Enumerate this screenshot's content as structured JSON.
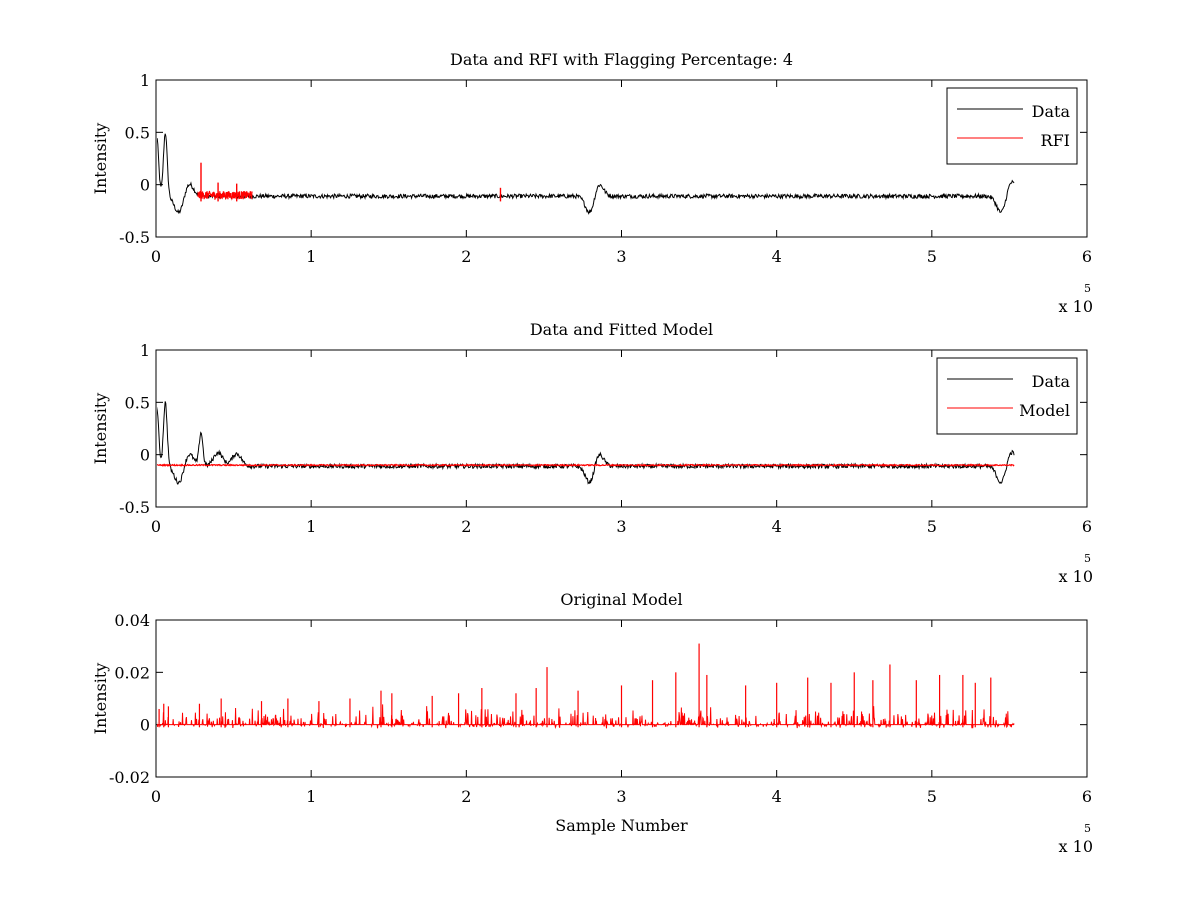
{
  "chart_data": [
    {
      "type": "line",
      "title": "Data and RFI with Flagging Percentage: 4",
      "xlabel": "",
      "ylabel": "Intensity",
      "xlim": [
        0,
        6
      ],
      "ylim": [
        -0.5,
        1
      ],
      "xticks": [
        "0",
        "1",
        "2",
        "3",
        "4",
        "5",
        "6"
      ],
      "yticks": [
        "-0.5",
        "0",
        "0.5",
        "1"
      ],
      "x_exponent": {
        "base": "x 10",
        "power": "5"
      },
      "legend": {
        "position": "top-right",
        "entries": [
          {
            "label": "Data",
            "color": "#000000"
          },
          {
            "label": "RFI",
            "color": "#ff0000"
          }
        ]
      },
      "series": [
        {
          "name": "Data",
          "color": "#000000",
          "style": "data",
          "x_end": 5.53,
          "baseline": -0.11,
          "noise": 0.02,
          "features": [
            {
              "x": 0.005,
              "y": 0.45
            },
            {
              "x": 0.06,
              "y": 0.5
            },
            {
              "x": 0.15,
              "y": -0.28
            },
            {
              "x": 0.21,
              "y": 0.02
            },
            {
              "x": 2.8,
              "y": -0.29
            },
            {
              "x": 2.85,
              "y": 0.03
            },
            {
              "x": 5.45,
              "y": -0.28
            },
            {
              "x": 5.51,
              "y": 0.04
            }
          ]
        },
        {
          "name": "RFI",
          "color": "#ff0000",
          "style": "rfi",
          "segments": [
            [
              0.27,
              0.62
            ]
          ],
          "spikes": [
            {
              "x": 0.29,
              "y": 0.21
            },
            {
              "x": 0.4,
              "y": 0.02
            },
            {
              "x": 0.52,
              "y": 0.01
            },
            {
              "x": 2.22,
              "y": -0.03
            }
          ]
        }
      ]
    },
    {
      "type": "line",
      "title": "Data and Fitted Model",
      "xlabel": "",
      "ylabel": "Intensity",
      "xlim": [
        0,
        6
      ],
      "ylim": [
        -0.5,
        1
      ],
      "xticks": [
        "0",
        "1",
        "2",
        "3",
        "4",
        "5",
        "6"
      ],
      "yticks": [
        "-0.5",
        "0",
        "0.5",
        "1"
      ],
      "x_exponent": {
        "base": "x 10",
        "power": "5"
      },
      "legend": {
        "position": "top-right",
        "entries": [
          {
            "label": "Data",
            "color": "#000000"
          },
          {
            "label": "Model",
            "color": "#ff0000"
          }
        ]
      },
      "series": [
        {
          "name": "Data",
          "color": "#000000",
          "style": "data",
          "x_end": 5.53,
          "baseline": -0.11,
          "noise": 0.02,
          "features": [
            {
              "x": 0.005,
              "y": 0.45
            },
            {
              "x": 0.06,
              "y": 0.5
            },
            {
              "x": 0.15,
              "y": -0.28
            },
            {
              "x": 0.21,
              "y": 0.02
            },
            {
              "x": 0.29,
              "y": 0.21
            },
            {
              "x": 0.4,
              "y": 0.02
            },
            {
              "x": 0.52,
              "y": 0.01
            },
            {
              "x": 2.8,
              "y": -0.29
            },
            {
              "x": 2.85,
              "y": 0.03
            },
            {
              "x": 5.45,
              "y": -0.28
            },
            {
              "x": 5.51,
              "y": 0.04
            }
          ]
        },
        {
          "name": "Model",
          "color": "#ff0000",
          "style": "model",
          "x_end": 5.53,
          "baseline": -0.1,
          "noise": 0.006
        }
      ]
    },
    {
      "type": "line",
      "title": "Original Model",
      "xlabel": "Sample Number",
      "ylabel": "Intensity",
      "xlim": [
        0,
        6
      ],
      "ylim": [
        -0.02,
        0.04
      ],
      "xticks": [
        "0",
        "1",
        "2",
        "3",
        "4",
        "5",
        "6"
      ],
      "yticks": [
        "-0.02",
        "0",
        "0.02",
        "0.04"
      ],
      "x_exponent": {
        "base": "x 10",
        "power": "5"
      },
      "series": [
        {
          "name": "",
          "color": "#ff0000",
          "style": "spikes",
          "x_end": 5.53,
          "baseline": 0.0,
          "spikes": [
            {
              "x": 0.02,
              "y": 0.006
            },
            {
              "x": 0.05,
              "y": 0.008
            },
            {
              "x": 0.08,
              "y": 0.007
            },
            {
              "x": 0.28,
              "y": 0.008
            },
            {
              "x": 0.42,
              "y": 0.01
            },
            {
              "x": 0.68,
              "y": 0.009
            },
            {
              "x": 0.85,
              "y": 0.01
            },
            {
              "x": 1.05,
              "y": 0.009
            },
            {
              "x": 1.25,
              "y": 0.01
            },
            {
              "x": 1.45,
              "y": 0.013
            },
            {
              "x": 1.52,
              "y": 0.012
            },
            {
              "x": 1.78,
              "y": 0.011
            },
            {
              "x": 1.95,
              "y": 0.012
            },
            {
              "x": 2.1,
              "y": 0.014
            },
            {
              "x": 2.32,
              "y": 0.012
            },
            {
              "x": 2.45,
              "y": 0.014
            },
            {
              "x": 2.52,
              "y": 0.022
            },
            {
              "x": 2.72,
              "y": 0.013
            },
            {
              "x": 3.0,
              "y": 0.015
            },
            {
              "x": 3.2,
              "y": 0.017
            },
            {
              "x": 3.35,
              "y": 0.02
            },
            {
              "x": 3.5,
              "y": 0.031
            },
            {
              "x": 3.55,
              "y": 0.019
            },
            {
              "x": 3.8,
              "y": 0.015
            },
            {
              "x": 4.0,
              "y": 0.016
            },
            {
              "x": 4.2,
              "y": 0.018
            },
            {
              "x": 4.35,
              "y": 0.016
            },
            {
              "x": 4.5,
              "y": 0.02
            },
            {
              "x": 4.62,
              "y": 0.017
            },
            {
              "x": 4.73,
              "y": 0.023
            },
            {
              "x": 4.9,
              "y": 0.017
            },
            {
              "x": 5.05,
              "y": 0.019
            },
            {
              "x": 5.2,
              "y": 0.019
            },
            {
              "x": 5.28,
              "y": 0.016
            },
            {
              "x": 5.38,
              "y": 0.018
            }
          ]
        }
      ]
    }
  ]
}
